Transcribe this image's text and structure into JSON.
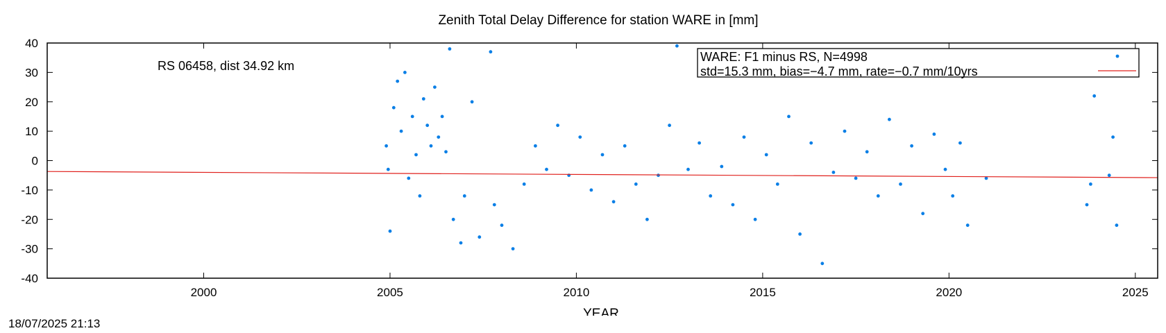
{
  "chart_data": {
    "type": "scatter",
    "title": "Zenith Total Delay Difference for station WARE in [mm]",
    "xlabel": "YEAR",
    "ylabel": "",
    "xlim": [
      1995.8,
      2025.6
    ],
    "ylim": [
      -40,
      40
    ],
    "xticks": [
      2000,
      2005,
      2010,
      2015,
      2020,
      2025
    ],
    "yticks": [
      -40,
      -30,
      -20,
      -10,
      0,
      10,
      20,
      30,
      40
    ],
    "grid": false,
    "legend_placement": "top-right",
    "annotation": "RS 06458, dist 34.92 km",
    "series": [
      {
        "name": "WARE: F1 minus RS, N=4998",
        "kind": "points",
        "color": "#0a7fe6",
        "n_points": 4998,
        "sampled_points": [
          [
            2004.9,
            5
          ],
          [
            2004.95,
            -3
          ],
          [
            2005.0,
            -24
          ],
          [
            2005.1,
            18
          ],
          [
            2005.2,
            27
          ],
          [
            2005.3,
            10
          ],
          [
            2005.4,
            30
          ],
          [
            2005.5,
            -6
          ],
          [
            2005.6,
            15
          ],
          [
            2005.7,
            2
          ],
          [
            2005.8,
            -12
          ],
          [
            2005.9,
            21
          ],
          [
            2006.0,
            12
          ],
          [
            2006.1,
            5
          ],
          [
            2006.2,
            25
          ],
          [
            2006.3,
            8
          ],
          [
            2006.4,
            15
          ],
          [
            2006.5,
            3
          ],
          [
            2006.6,
            38
          ],
          [
            2006.7,
            -20
          ],
          [
            2006.9,
            -28
          ],
          [
            2007.0,
            -12
          ],
          [
            2007.2,
            20
          ],
          [
            2007.4,
            -26
          ],
          [
            2007.7,
            37
          ],
          [
            2007.8,
            -15
          ],
          [
            2008.0,
            -22
          ],
          [
            2008.3,
            -30
          ],
          [
            2008.6,
            -8
          ],
          [
            2008.9,
            5
          ],
          [
            2009.2,
            -3
          ],
          [
            2009.5,
            12
          ],
          [
            2009.8,
            -5
          ],
          [
            2010.1,
            8
          ],
          [
            2010.4,
            -10
          ],
          [
            2010.7,
            2
          ],
          [
            2011.0,
            -14
          ],
          [
            2011.3,
            5
          ],
          [
            2011.6,
            -8
          ],
          [
            2011.9,
            -20
          ],
          [
            2012.2,
            -5
          ],
          [
            2012.5,
            12
          ],
          [
            2012.7,
            39
          ],
          [
            2013.0,
            -3
          ],
          [
            2013.3,
            6
          ],
          [
            2013.6,
            -12
          ],
          [
            2013.9,
            -2
          ],
          [
            2014.2,
            -15
          ],
          [
            2014.5,
            8
          ],
          [
            2014.8,
            -20
          ],
          [
            2015.1,
            2
          ],
          [
            2015.4,
            -8
          ],
          [
            2015.7,
            15
          ],
          [
            2016.0,
            -25
          ],
          [
            2016.3,
            6
          ],
          [
            2016.6,
            -35
          ],
          [
            2016.9,
            -4
          ],
          [
            2017.2,
            10
          ],
          [
            2017.5,
            -6
          ],
          [
            2017.8,
            3
          ],
          [
            2018.1,
            -12
          ],
          [
            2018.4,
            14
          ],
          [
            2018.7,
            -8
          ],
          [
            2019.0,
            5
          ],
          [
            2019.3,
            -18
          ],
          [
            2019.6,
            9
          ],
          [
            2019.9,
            -3
          ],
          [
            2020.1,
            -12
          ],
          [
            2020.3,
            6
          ],
          [
            2020.5,
            -22
          ],
          [
            2021.0,
            -6
          ],
          [
            2023.7,
            -15
          ],
          [
            2023.8,
            -8
          ],
          [
            2023.9,
            22
          ],
          [
            2024.3,
            -5
          ],
          [
            2024.4,
            8
          ],
          [
            2024.5,
            -22
          ]
        ]
      },
      {
        "name": "std=15.3 mm, bias=−4.7 mm, rate=−0.7 mm/10yrs",
        "kind": "line",
        "color": "#e0201c",
        "x": [
          1995.8,
          2025.6
        ],
        "y": [
          -3.7,
          -5.8
        ]
      }
    ]
  },
  "footer": {
    "timestamp": "18/07/2025 21:13"
  }
}
